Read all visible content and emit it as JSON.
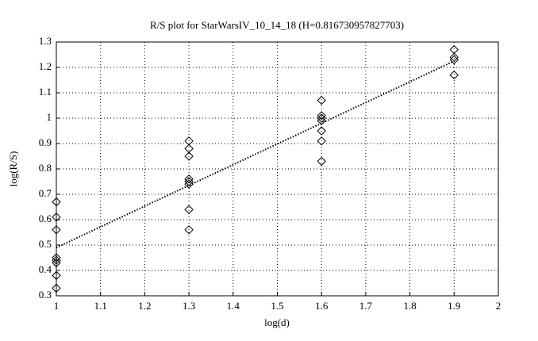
{
  "chart_data": {
    "type": "scatter",
    "title": "R/S plot for StarWarsIV_10_14_18 (H=0.816730957827703)",
    "xlabel": "log(d)",
    "ylabel": "log(R/S)",
    "xlim": [
      1,
      2
    ],
    "xticks": [
      1,
      1.1,
      1.2,
      1.3,
      1.4,
      1.5,
      1.6,
      1.7,
      1.8,
      1.9,
      2
    ],
    "ylim": [
      0.3,
      1.3
    ],
    "yticks": [
      0.3,
      0.4,
      0.5,
      0.6,
      0.7,
      0.8,
      0.9,
      1,
      1.1,
      1.2,
      1.3
    ],
    "grid": true,
    "series": [
      {
        "type": "scatter",
        "marker": "diamond",
        "color": "#000000",
        "x": [
          1,
          1,
          1,
          1,
          1,
          1,
          1,
          1,
          1.3,
          1.3,
          1.3,
          1.3,
          1.3,
          1.3,
          1.3,
          1.3,
          1.6,
          1.6,
          1.6,
          1.6,
          1.6,
          1.6,
          1.6,
          1.9,
          1.9,
          1.9,
          1.9
        ],
        "values": [
          0.67,
          0.61,
          0.56,
          0.45,
          0.44,
          0.43,
          0.38,
          0.33,
          0.91,
          0.88,
          0.85,
          0.76,
          0.75,
          0.74,
          0.64,
          0.56,
          1.07,
          1.01,
          1.0,
          0.99,
          0.95,
          0.91,
          0.83,
          1.27,
          1.24,
          1.23,
          1.17
        ]
      },
      {
        "type": "line",
        "style": "dotted",
        "color": "#000000",
        "x": [
          1,
          1.9
        ],
        "values": [
          0.49,
          1.225
        ]
      }
    ]
  }
}
